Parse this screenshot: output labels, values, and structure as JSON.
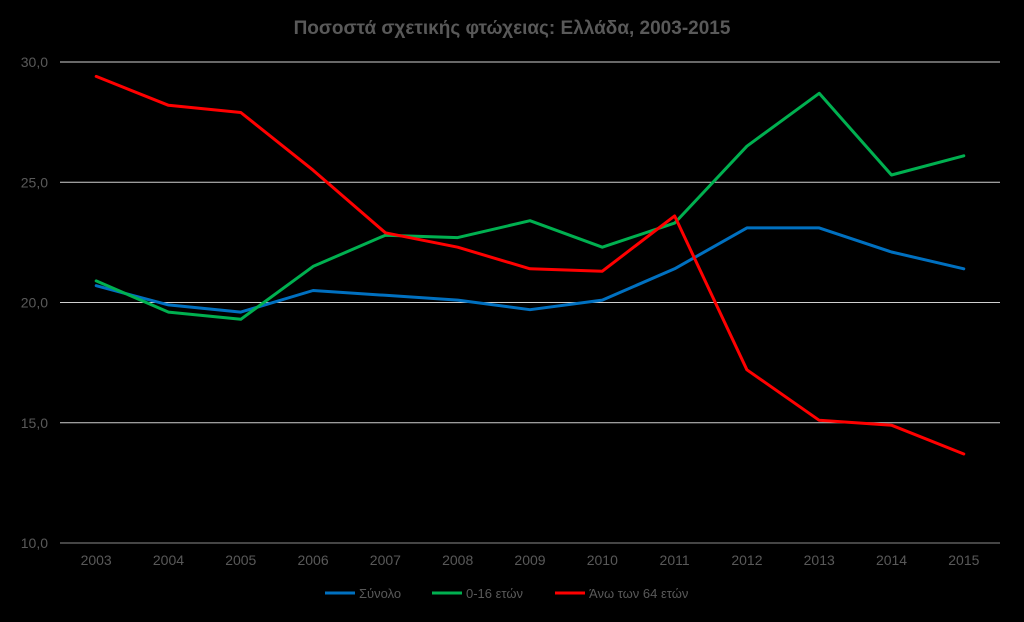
{
  "chart_data": {
    "type": "line",
    "title": "Ποσοστά σχετικής φτώχειας: Ελλάδα, 2003-2015",
    "xlabel": "",
    "ylabel": "",
    "categories": [
      "2003",
      "2004",
      "2005",
      "2006",
      "2007",
      "2008",
      "2009",
      "2010",
      "2011",
      "2012",
      "2013",
      "2014",
      "2015"
    ],
    "ylim": [
      10,
      30
    ],
    "yticks": [
      "10,0",
      "15,0",
      "20,0",
      "25,0",
      "30,0"
    ],
    "grid": true,
    "legend": "bottom",
    "series": [
      {
        "name": "Σύνολο",
        "color": "#0070C0",
        "values": [
          20.7,
          19.9,
          19.6,
          20.5,
          20.3,
          20.1,
          19.7,
          20.1,
          21.4,
          23.1,
          23.1,
          22.1,
          21.4
        ]
      },
      {
        "name": "0-16 ετών",
        "color": "#00B050",
        "values": [
          20.9,
          19.6,
          19.3,
          21.5,
          22.8,
          22.7,
          23.4,
          22.3,
          23.3,
          26.5,
          28.7,
          25.3,
          26.1
        ]
      },
      {
        "name": "Άνω των 64 ετών",
        "color": "#FF0000",
        "values": [
          29.4,
          28.2,
          27.9,
          25.5,
          22.9,
          22.3,
          21.4,
          21.3,
          23.6,
          17.2,
          15.1,
          14.9,
          13.7
        ]
      }
    ]
  }
}
